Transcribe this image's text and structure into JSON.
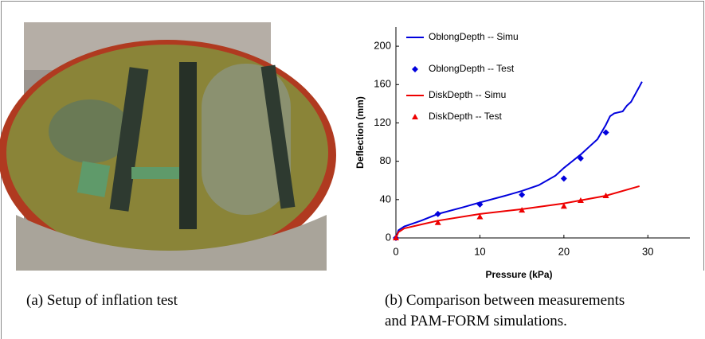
{
  "figure": {
    "panel_a": {
      "caption": "(a) Setup of inflation test"
    },
    "panel_b": {
      "caption_lines": [
        "(b) Comparison between measurements",
        "and PAM-FORM simulations."
      ]
    }
  },
  "chart_data": {
    "type": "line",
    "xlabel": "Pressure (kPa)",
    "ylabel": "Deflection (mm)",
    "xlim": [
      0,
      35
    ],
    "ylim": [
      0,
      220
    ],
    "xticks": [
      0,
      10,
      20,
      30
    ],
    "yticks": [
      0,
      40,
      80,
      120,
      160,
      200
    ],
    "legend": "upper-left",
    "series": [
      {
        "name": "OblongDepth -- Simu",
        "color": "#0000dd",
        "style": "line",
        "x": [
          0,
          0.3,
          1,
          3,
          5,
          8,
          10,
          13,
          15,
          17,
          19,
          20,
          21,
          22,
          23,
          24,
          25,
          25.5,
          26,
          27,
          27.5,
          28,
          28.5,
          29,
          29.3
        ],
        "values": [
          0,
          8,
          12,
          18,
          25,
          32,
          37,
          44,
          49,
          55,
          65,
          73,
          80,
          87,
          95,
          103,
          118,
          127,
          130,
          132,
          138,
          142,
          150,
          158,
          163
        ]
      },
      {
        "name": "OblongDepth -- Test",
        "color": "#0000dd",
        "style": "diamond",
        "x": [
          0,
          5,
          10,
          15,
          20,
          22,
          25
        ],
        "values": [
          0,
          25,
          35,
          45,
          62,
          83,
          110
        ]
      },
      {
        "name": "DiskDepth -- Simu",
        "color": "#ee0000",
        "style": "line",
        "x": [
          0,
          0.3,
          1,
          3,
          5,
          10,
          15,
          20,
          25,
          29
        ],
        "values": [
          0,
          6,
          10,
          14,
          18,
          25,
          30,
          36,
          44,
          54
        ]
      },
      {
        "name": "DiskDepth -- Test",
        "color": "#ee0000",
        "style": "triangle",
        "x": [
          0,
          5,
          10,
          15,
          20,
          22,
          25
        ],
        "values": [
          0,
          16,
          22,
          29,
          33,
          39,
          44
        ]
      }
    ]
  }
}
